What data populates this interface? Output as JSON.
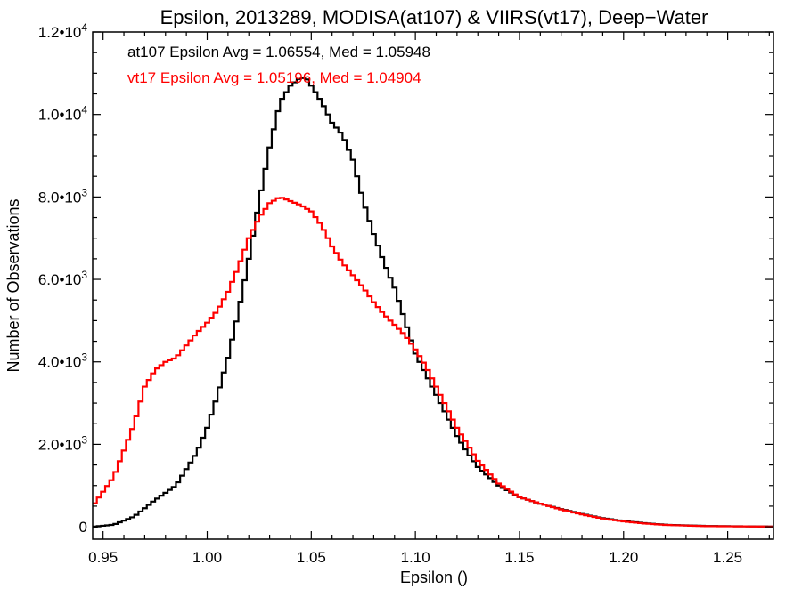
{
  "chart_data": {
    "type": "line",
    "title": "Epsilon, 2013289, MODISA(at107) & VIIRS(vt17), Deep−Water",
    "xlabel": "Epsilon ()",
    "ylabel": "Number of Observations",
    "xlim": [
      0.945,
      1.272
    ],
    "ylim": [
      -300,
      12000
    ],
    "xticks": [
      {
        "value": 0.95,
        "label": "0.95"
      },
      {
        "value": 1.0,
        "label": "1.00"
      },
      {
        "value": 1.05,
        "label": "1.05"
      },
      {
        "value": 1.1,
        "label": "1.10"
      },
      {
        "value": 1.15,
        "label": "1.15"
      },
      {
        "value": 1.2,
        "label": "1.20"
      },
      {
        "value": 1.25,
        "label": "1.25"
      }
    ],
    "yticks": [
      {
        "value": 0,
        "mant": "0",
        "exp": ""
      },
      {
        "value": 2000,
        "mant": "2.0•10",
        "exp": "3"
      },
      {
        "value": 4000,
        "mant": "4.0•10",
        "exp": "3"
      },
      {
        "value": 6000,
        "mant": "6.0•10",
        "exp": "3"
      },
      {
        "value": 8000,
        "mant": "8.0•10",
        "exp": "3"
      },
      {
        "value": 10000,
        "mant": "1.0•10",
        "exp": "4"
      },
      {
        "value": 12000,
        "mant": "1.2•10",
        "exp": "4"
      }
    ],
    "grid": false,
    "legend_position": "top-left",
    "series": [
      {
        "name": "at107",
        "annotation": "at107 Epsilon Avg = 1.06554, Med = 1.05948",
        "color": "#000000",
        "x": [
          0.945,
          0.955,
          0.965,
          0.975,
          0.985,
          0.995,
          1.0,
          1.005,
          1.01,
          1.015,
          1.02,
          1.025,
          1.03,
          1.035,
          1.04,
          1.045,
          1.048,
          1.05,
          1.055,
          1.06,
          1.065,
          1.07,
          1.075,
          1.08,
          1.085,
          1.09,
          1.095,
          1.1,
          1.105,
          1.11,
          1.115,
          1.12,
          1.125,
          1.13,
          1.14,
          1.15,
          1.16,
          1.17,
          1.18,
          1.19,
          1.2,
          1.21,
          1.22,
          1.24,
          1.272
        ],
        "y": [
          0,
          50,
          250,
          650,
          1000,
          1800,
          2400,
          3200,
          4100,
          5200,
          6500,
          7900,
          9200,
          10300,
          10700,
          10900,
          10850,
          10700,
          10300,
          9800,
          9500,
          8900,
          7900,
          7100,
          6400,
          5800,
          5000,
          4200,
          3700,
          3200,
          2700,
          2200,
          1800,
          1450,
          1000,
          720,
          560,
          430,
          310,
          210,
          140,
          90,
          50,
          20,
          5
        ]
      },
      {
        "name": "vt17",
        "annotation": "vt17 Epsilon Avg = 1.05196, Med = 1.04904",
        "color": "#ff0000",
        "x": [
          0.945,
          0.955,
          0.965,
          0.97,
          0.975,
          0.98,
          0.985,
          0.99,
          0.995,
          1.0,
          1.005,
          1.01,
          1.015,
          1.02,
          1.025,
          1.03,
          1.035,
          1.04,
          1.045,
          1.05,
          1.055,
          1.06,
          1.065,
          1.07,
          1.075,
          1.08,
          1.085,
          1.09,
          1.095,
          1.1,
          1.105,
          1.11,
          1.115,
          1.12,
          1.125,
          1.13,
          1.14,
          1.15,
          1.16,
          1.17,
          1.18,
          1.19,
          1.2,
          1.21,
          1.22,
          1.24,
          1.272
        ],
        "y": [
          500,
          1200,
          2500,
          3400,
          3800,
          4000,
          4100,
          4400,
          4700,
          4950,
          5250,
          5700,
          6300,
          7000,
          7500,
          7850,
          8000,
          7900,
          7800,
          7650,
          7300,
          6800,
          6400,
          6100,
          5800,
          5450,
          5150,
          4900,
          4650,
          4300,
          3900,
          3400,
          2900,
          2400,
          2000,
          1600,
          1050,
          720,
          560,
          420,
          300,
          200,
          130,
          80,
          45,
          15,
          5
        ]
      }
    ]
  }
}
